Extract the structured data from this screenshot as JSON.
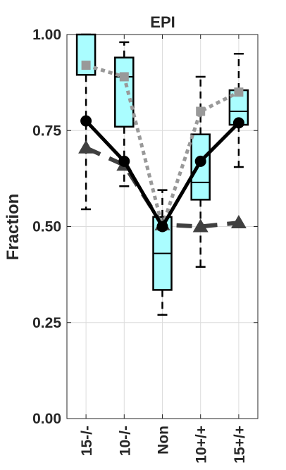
{
  "chart_data": {
    "type": "box",
    "title": "EPI",
    "xlabel": "",
    "ylabel": "Fraction",
    "ylim": [
      0,
      1
    ],
    "yticks": [
      0,
      0.25,
      0.5,
      0.75,
      1
    ],
    "ytick_labels": [
      "0.00",
      "0.25",
      "0.50",
      "0.75",
      "1.00"
    ],
    "categories": [
      "15-/-",
      "10-/-",
      "Non",
      "10+/+",
      "15+/+"
    ],
    "grid": true,
    "boxes": [
      {
        "whisker_low": 0.545,
        "q1": 0.895,
        "median": 1.0,
        "q3": 1.0,
        "whisker_high": 1.0
      },
      {
        "whisker_low": 0.605,
        "q1": 0.76,
        "median": 0.89,
        "q3": 0.94,
        "whisker_high": 0.98
      },
      {
        "whisker_low": 0.27,
        "q1": 0.335,
        "median": 0.43,
        "q3": 0.525,
        "whisker_high": 0.595
      },
      {
        "whisker_low": 0.395,
        "q1": 0.57,
        "median": 0.615,
        "q3": 0.74,
        "whisker_high": 0.89
      },
      {
        "whisker_low": 0.655,
        "q1": 0.765,
        "median": 0.8,
        "q3": 0.855,
        "whisker_high": 0.95
      }
    ],
    "series": [
      {
        "marker": "circle",
        "style": "solid",
        "color": "#000000",
        "values": [
          0.775,
          0.67,
          0.5,
          0.67,
          0.77
        ]
      },
      {
        "marker": "square",
        "style": "dotted",
        "color": "#999999",
        "values": [
          0.92,
          0.89,
          0.5,
          0.8,
          0.85
        ]
      },
      {
        "marker": "triangle",
        "style": "dashed",
        "color": "#404040",
        "values": [
          0.705,
          0.66,
          0.505,
          0.5,
          0.51
        ]
      }
    ],
    "colors": {
      "box_fill": "#aafdff",
      "box_edge": "#000000",
      "grid": "#dcdcdc",
      "axis": "#262626"
    }
  }
}
